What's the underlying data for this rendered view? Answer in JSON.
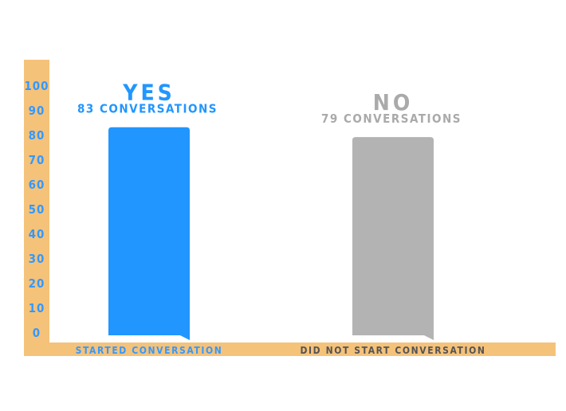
{
  "chart_data": {
    "type": "bar",
    "title": "",
    "xlabel": "",
    "ylabel": "",
    "ylim": [
      0,
      100
    ],
    "yticks": [
      0,
      10,
      20,
      30,
      40,
      50,
      60,
      70,
      80,
      90,
      100
    ],
    "categories": [
      "STARTED CONVERSATION",
      "DID NOT START CONVERSATION"
    ],
    "values": [
      83,
      79
    ],
    "bar_labels": [
      "YES",
      "NO"
    ],
    "bar_sublabels": [
      "83 CONVERSATIONS",
      "79 CONVERSATIONS"
    ],
    "grid": false,
    "legend": "none"
  },
  "colors": {
    "axis_band": "#f5c27a",
    "tick_text": "#3399ff",
    "yes_bar": "#2196ff",
    "no_bar": "#b3b3b3",
    "no_text": "#aaaaaa",
    "category_yes_text": "#3399ff",
    "category_no_text": "#555555"
  }
}
